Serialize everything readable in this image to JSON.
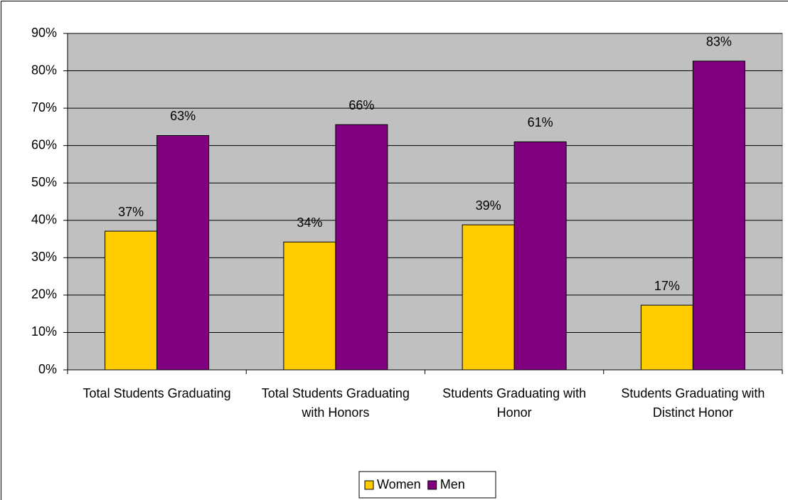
{
  "chart_data": {
    "type": "bar",
    "categories": [
      "Total Students Graduating",
      "Total Students Graduating with Honors",
      "Students Graduating with Honor",
      "Students Graduating with Distinct Honor"
    ],
    "series": [
      {
        "name": "Women",
        "color": "#ffcc00",
        "values": [
          37.1,
          34.2,
          38.8,
          17.3
        ],
        "value_labels": [
          "37%",
          "34%",
          "39%",
          "17%"
        ]
      },
      {
        "name": "Men",
        "color": "#800080",
        "values": [
          62.7,
          65.6,
          61.0,
          82.6
        ],
        "value_labels": [
          "63%",
          "66%",
          "61%",
          "83%"
        ]
      }
    ],
    "ylim": [
      0,
      90
    ],
    "yticks": [
      {
        "value": 0,
        "label": "0%"
      },
      {
        "value": 10,
        "label": "10%"
      },
      {
        "value": 20,
        "label": "20%"
      },
      {
        "value": 30,
        "label": "30%"
      },
      {
        "value": 40,
        "label": "40%"
      },
      {
        "value": 50,
        "label": "50%"
      },
      {
        "value": 60,
        "label": "60%"
      },
      {
        "value": 70,
        "label": "70%"
      },
      {
        "value": 80,
        "label": "80%"
      },
      {
        "value": 90,
        "label": "90%"
      }
    ],
    "grid": true,
    "legend": "bottom"
  }
}
